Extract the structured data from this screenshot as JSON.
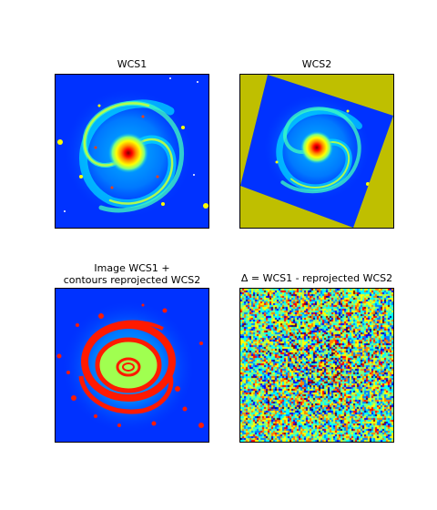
{
  "panels": [
    {
      "title": "WCS1"
    },
    {
      "title": "WCS2"
    },
    {
      "title": "Image WCS1 +\ncontours reprojected WCS2"
    },
    {
      "title": "Δ = WCS1 - reprojected WCS2"
    }
  ],
  "colors": {
    "background_fill": "#bfbf00",
    "colormap": "jet",
    "contour": "#ff1a00"
  }
}
